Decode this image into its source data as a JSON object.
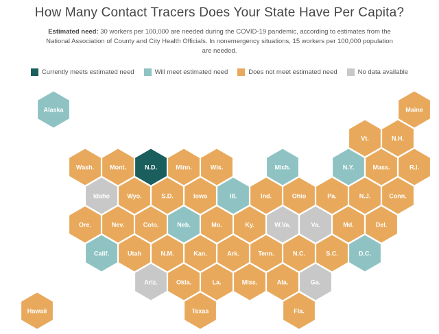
{
  "title": "How Many Contact Tracers Does Your State Have Per Capita?",
  "subtitle_bold": "Estimated need:",
  "subtitle_text": " 30 workers per 100,000 are needed during the COVID-19 pandemic, according to estimates from the National Association of County and City Health Officials. In nonemergency situations, 15 workers per 100,000 population are needed.",
  "legend": [
    {
      "key": "meets",
      "label": "Currently meets estimated need"
    },
    {
      "key": "will",
      "label": "Will meet estimated need"
    },
    {
      "key": "not",
      "label": "Does not meet estimated need"
    },
    {
      "key": "none",
      "label": "No data available"
    }
  ],
  "colors": {
    "meets": "#1a5e5e",
    "will": "#8fc3c3",
    "not": "#e8a95c",
    "none": "#c8c8c8"
  },
  "states": [
    {
      "name": "Alaska",
      "status": "will"
    },
    {
      "name": "Maine",
      "status": "not"
    },
    {
      "name": "Vt.",
      "status": "not"
    },
    {
      "name": "N.H.",
      "status": "not"
    },
    {
      "name": "Wash.",
      "status": "not"
    },
    {
      "name": "Mont.",
      "status": "not"
    },
    {
      "name": "N.D.",
      "status": "meets"
    },
    {
      "name": "Minn.",
      "status": "not"
    },
    {
      "name": "Wis.",
      "status": "not"
    },
    {
      "name": "Mich.",
      "status": "will"
    },
    {
      "name": "N.Y.",
      "status": "will"
    },
    {
      "name": "Mass.",
      "status": "not"
    },
    {
      "name": "R.I.",
      "status": "not"
    },
    {
      "name": "Idaho",
      "status": "none"
    },
    {
      "name": "Wyo.",
      "status": "not"
    },
    {
      "name": "S.D.",
      "status": "not"
    },
    {
      "name": "Iowa",
      "status": "not"
    },
    {
      "name": "Ill.",
      "status": "will"
    },
    {
      "name": "Ind.",
      "status": "not"
    },
    {
      "name": "Ohio",
      "status": "not"
    },
    {
      "name": "Pa.",
      "status": "not"
    },
    {
      "name": "N.J.",
      "status": "not"
    },
    {
      "name": "Conn.",
      "status": "not"
    },
    {
      "name": "Ore.",
      "status": "not"
    },
    {
      "name": "Nev.",
      "status": "not"
    },
    {
      "name": "Colo.",
      "status": "not"
    },
    {
      "name": "Neb.",
      "status": "will"
    },
    {
      "name": "Mo.",
      "status": "not"
    },
    {
      "name": "Ky.",
      "status": "not"
    },
    {
      "name": "W.Va.",
      "status": "none"
    },
    {
      "name": "Va.",
      "status": "none"
    },
    {
      "name": "Md.",
      "status": "not"
    },
    {
      "name": "Del.",
      "status": "not"
    },
    {
      "name": "Calif.",
      "status": "will"
    },
    {
      "name": "Utah",
      "status": "not"
    },
    {
      "name": "N.M.",
      "status": "not"
    },
    {
      "name": "Kan.",
      "status": "not"
    },
    {
      "name": "Ark.",
      "status": "not"
    },
    {
      "name": "Tenn.",
      "status": "not"
    },
    {
      "name": "N.C.",
      "status": "not"
    },
    {
      "name": "S.C.",
      "status": "not"
    },
    {
      "name": "D.C.",
      "status": "will"
    },
    {
      "name": "Ariz.",
      "status": "none"
    },
    {
      "name": "Okla.",
      "status": "not"
    },
    {
      "name": "La.",
      "status": "not"
    },
    {
      "name": "Miss.",
      "status": "not"
    },
    {
      "name": "Ala.",
      "status": "not"
    },
    {
      "name": "Ga.",
      "status": "none"
    },
    {
      "name": "Hawaii",
      "status": "not"
    },
    {
      "name": "Texas",
      "status": "not"
    },
    {
      "name": "Fla.",
      "status": "not"
    }
  ]
}
